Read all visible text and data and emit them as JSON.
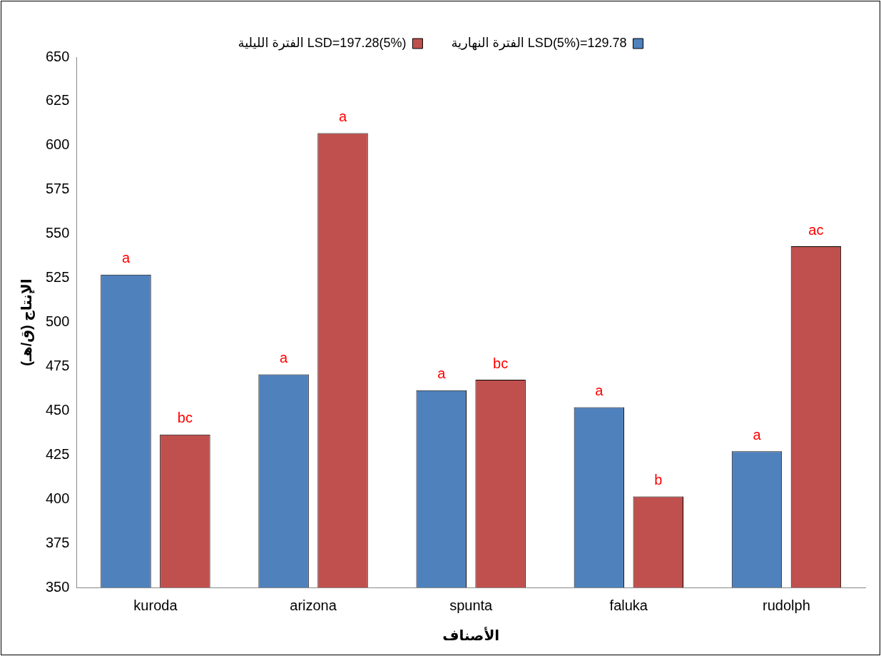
{
  "chart_data": {
    "type": "bar",
    "xlabel": "الأصناف",
    "ylabel": "الإنتاج (ق/هـ)",
    "categories": [
      "kuroda",
      "arizona",
      "spunta",
      "faluka",
      "rudolph"
    ],
    "series": [
      {
        "name": "الفترة النهارية LSD(5%)=129.78",
        "color": "#4f81bd",
        "values": [
          527,
          470.5,
          461.5,
          452,
          427
        ],
        "value_labels": [
          "a",
          "a",
          "a",
          "a",
          "a"
        ]
      },
      {
        "name": "الفترة الليلية LSD=197.28(5%)",
        "color": "#c0504d",
        "values": [
          436.5,
          607,
          467.5,
          401.5,
          543
        ],
        "value_labels": [
          "bc",
          "a",
          "bc",
          "b",
          "ac"
        ]
      }
    ],
    "ylim": [
      350,
      650
    ],
    "yticks": [
      350,
      375,
      400,
      425,
      450,
      475,
      500,
      525,
      550,
      575,
      600,
      625,
      650
    ],
    "grid": false,
    "legend": "top"
  }
}
